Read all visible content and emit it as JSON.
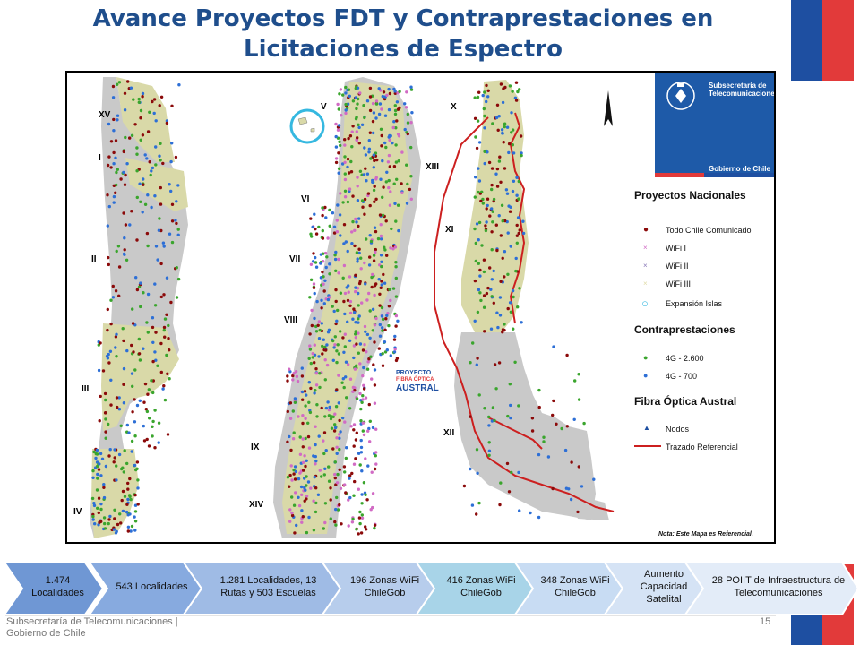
{
  "title": {
    "line1": "Avance Proyectos FDT y Contraprestaciones en",
    "line2": "Licitaciones de Espectro"
  },
  "map": {
    "region_labels": [
      "XV",
      "I",
      "II",
      "III",
      "IV",
      "V",
      "VI",
      "VII",
      "VIII",
      "IX",
      "XIV",
      "X",
      "XIII",
      "XI",
      "XII"
    ],
    "logo": {
      "line1": "Subsecretaría de",
      "line2": "Telecomunicaciones",
      "footer": "Gobierno de Chile"
    },
    "fibra_logo": {
      "line1": "PROYECTO",
      "line2": "FIBRA ÓPTICA",
      "line3": "AUSTRAL"
    },
    "legend": {
      "proyectos_title": "Proyectos Nacionales",
      "proyectos_items": [
        "Todo Chile Comunicado",
        "WiFi I",
        "WiFi II",
        "WiFi III",
        "Expansión Islas"
      ],
      "contra_title": "Contraprestaciones",
      "contra_items": [
        "4G - 2.600",
        "4G - 700"
      ],
      "fibra_title": "Fibra Óptica Austral",
      "fibra_items": [
        "Nodos",
        "Trazado Referencial"
      ]
    },
    "note": "Nota: Este Mapa es Referencial.",
    "colors": {
      "todo_chile": "#8b0a0a",
      "wifi": "#d16bc4",
      "4g_2600": "#3aa52d",
      "4g_700": "#2d6fd6",
      "fibra": "#cc1f1f",
      "region_green": "#d9d9a8",
      "region_gray": "#c9c9c9"
    }
  },
  "timeline": [
    {
      "label": "1.474 Localidades",
      "color": "#6f97d4"
    },
    {
      "label": "543 Localidades",
      "color": "#87aadf"
    },
    {
      "label": "1.281 Localidades, 13 Rutas y 503 Escuelas",
      "color": "#9fbbe5"
    },
    {
      "label": "196 Zonas WiFi ChileGob",
      "color": "#b7cdec"
    },
    {
      "label": "416 Zonas WiFi ChileGob",
      "color": "#a8d4e8"
    },
    {
      "label": "348 Zonas WiFi ChileGob",
      "color": "#c8dcf3"
    },
    {
      "label": "Aumento Capacidad Satelital",
      "color": "#d5e3f5"
    },
    {
      "label": "28 POIIT de Infraestructura de Telecomunicaciones",
      "color": "#e3ecf8"
    }
  ],
  "footer": {
    "line1": "Subsecretaría de Telecomunicaciones |",
    "line2": "Gobierno de Chile",
    "page": "15"
  }
}
